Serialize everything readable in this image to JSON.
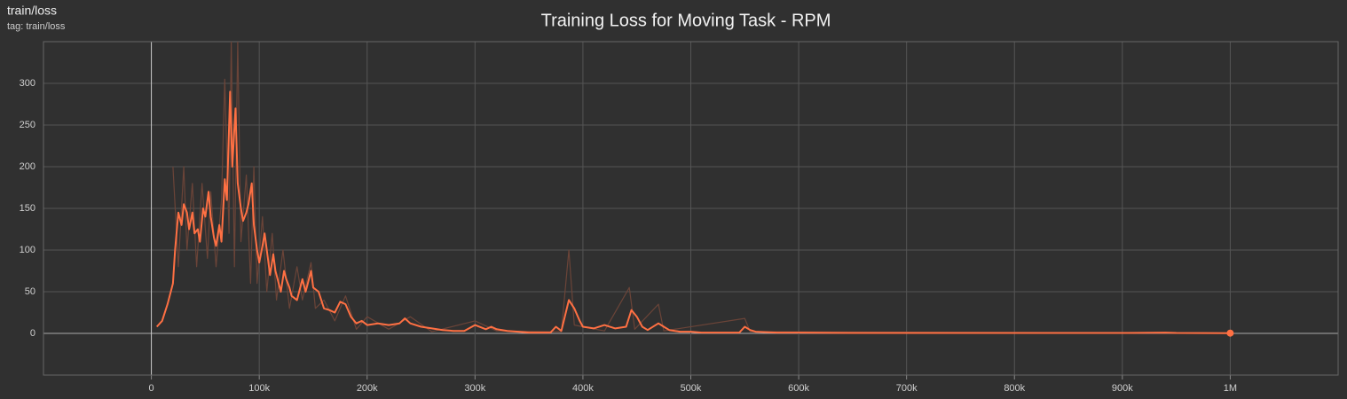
{
  "header": {
    "name": "train/loss",
    "tag": "tag: train/loss"
  },
  "chart_data": {
    "type": "line",
    "title": "Training Loss for Moving Task - RPM",
    "xlim": [
      -100000,
      1100000
    ],
    "xticks": [
      0,
      {
        "value": 100000,
        "label": "100k"
      },
      {
        "value": 200000,
        "label": "200k"
      },
      {
        "value": 300000,
        "label": "300k"
      },
      {
        "value": 400000,
        "label": "400k"
      },
      {
        "value": 500000,
        "label": "500k"
      },
      {
        "value": 600000,
        "label": "600k"
      },
      {
        "value": 700000,
        "label": "700k"
      },
      {
        "value": 800000,
        "label": "800k"
      },
      {
        "value": 900000,
        "label": "900k"
      },
      {
        "value": 1000000,
        "label": "1M"
      }
    ],
    "ylim": [
      -50,
      350
    ],
    "yticks": [
      0,
      50,
      100,
      150,
      200,
      250,
      300
    ],
    "grid": true,
    "series": [
      {
        "color": "#6b4438",
        "x": [
          20000,
          25000,
          30000,
          33000,
          38000,
          42000,
          47000,
          52000,
          55000,
          60000,
          65000,
          68000,
          72000,
          74000,
          77000,
          80000,
          83000,
          88000,
          92000,
          95000,
          98000,
          103000,
          107000,
          112000,
          116000,
          122000,
          128000,
          135000,
          140000,
          148000,
          152000,
          160000,
          170000,
          180000,
          190000,
          200000,
          220000,
          240000,
          260000,
          300000,
          320000,
          380000,
          387000,
          392000,
          420000,
          443000,
          448000,
          470000,
          475000,
          550000,
          555000,
          1000000
        ],
        "values": [
          200,
          80,
          200,
          100,
          180,
          80,
          180,
          90,
          170,
          80,
          160,
          305,
          120,
          350,
          80,
          350,
          110,
          190,
          60,
          200,
          60,
          140,
          50,
          120,
          40,
          100,
          30,
          80,
          40,
          85,
          30,
          40,
          15,
          45,
          5,
          20,
          5,
          20,
          2,
          15,
          3,
          2,
          100,
          10,
          3,
          55,
          5,
          35,
          3,
          18,
          2,
          0.3
        ]
      },
      {
        "color": "#ff7043",
        "x": [
          5000,
          10000,
          15000,
          20000,
          22000,
          25000,
          28000,
          30000,
          33000,
          35000,
          38000,
          40000,
          43000,
          45000,
          48000,
          50000,
          53000,
          55000,
          58000,
          60000,
          63000,
          65000,
          68000,
          70000,
          73000,
          75000,
          78000,
          80000,
          83000,
          85000,
          88000,
          90000,
          93000,
          95000,
          98000,
          100000,
          103000,
          105000,
          108000,
          110000,
          113000,
          115000,
          118000,
          120000,
          123000,
          125000,
          128000,
          130000,
          135000,
          140000,
          143000,
          145000,
          148000,
          150000,
          155000,
          160000,
          165000,
          170000,
          175000,
          180000,
          185000,
          190000,
          195000,
          200000,
          210000,
          220000,
          230000,
          235000,
          240000,
          250000,
          260000,
          270000,
          280000,
          290000,
          300000,
          310000,
          315000,
          320000,
          330000,
          340000,
          350000,
          360000,
          370000,
          375000,
          380000,
          387000,
          392000,
          397000,
          400000,
          410000,
          420000,
          430000,
          440000,
          445000,
          450000,
          455000,
          460000,
          470000,
          475000,
          480000,
          490000,
          500000,
          510000,
          520000,
          530000,
          545000,
          550000,
          555000,
          560000,
          580000,
          600000,
          650000,
          700000,
          750000,
          800000,
          850000,
          900000,
          940000,
          950000,
          1000000
        ],
        "values": [
          8,
          15,
          35,
          60,
          100,
          145,
          130,
          155,
          145,
          125,
          145,
          120,
          125,
          110,
          150,
          140,
          170,
          140,
          115,
          105,
          130,
          110,
          185,
          160,
          290,
          200,
          270,
          180,
          150,
          135,
          145,
          155,
          180,
          130,
          100,
          85,
          105,
          120,
          90,
          70,
          95,
          75,
          60,
          50,
          75,
          65,
          55,
          45,
          40,
          65,
          50,
          60,
          75,
          55,
          50,
          30,
          28,
          25,
          38,
          35,
          20,
          12,
          15,
          10,
          12,
          10,
          12,
          18,
          12,
          8,
          6,
          4,
          3,
          3,
          10,
          5,
          8,
          5,
          3,
          2,
          1,
          1,
          1,
          8,
          3,
          40,
          30,
          15,
          8,
          6,
          10,
          6,
          8,
          28,
          20,
          8,
          4,
          12,
          8,
          4,
          2,
          2,
          1,
          1,
          1,
          1,
          8,
          4,
          2,
          1,
          1,
          0.5,
          0.5,
          0.5,
          0.5,
          0.5,
          0.5,
          1,
          0.5,
          0.3
        ]
      }
    ]
  }
}
